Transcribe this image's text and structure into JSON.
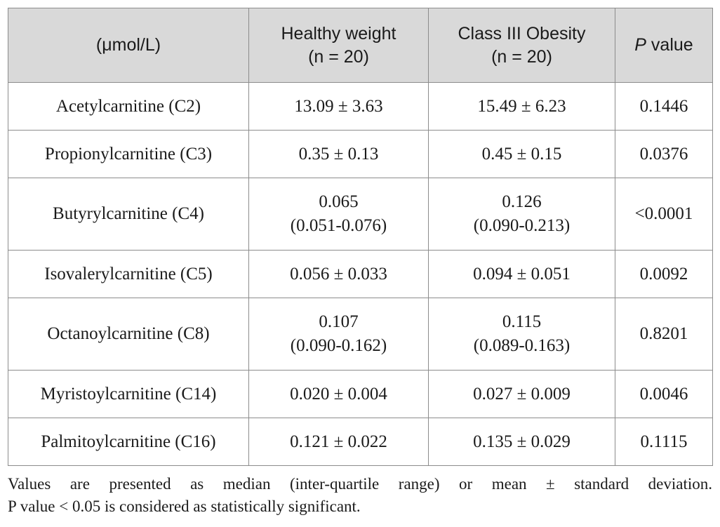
{
  "table": {
    "headers": [
      {
        "lines": [
          "(μmol/L)"
        ]
      },
      {
        "lines": [
          "Healthy weight",
          "(n = 20)"
        ]
      },
      {
        "lines": [
          "Class III Obesity",
          "(n = 20)"
        ]
      },
      {
        "italic": "P",
        "rest": " value"
      }
    ],
    "rows": [
      {
        "name": "Acetylcarnitine (C2)",
        "healthy": [
          "13.09 ± 3.63"
        ],
        "obesity": [
          "15.49 ± 6.23"
        ],
        "p": "0.1446"
      },
      {
        "name": "Propionylcarnitine (C3)",
        "healthy": [
          "0.35 ± 0.13"
        ],
        "obesity": [
          "0.45 ± 0.15"
        ],
        "p": "0.0376"
      },
      {
        "name": "Butyrylcarnitine (C4)",
        "healthy": [
          "0.065",
          "(0.051-0.076)"
        ],
        "obesity": [
          "0.126",
          "(0.090-0.213)"
        ],
        "p": "<0.0001"
      },
      {
        "name": "Isovalerylcarnitine (C5)",
        "healthy": [
          "0.056 ± 0.033"
        ],
        "obesity": [
          "0.094 ± 0.051"
        ],
        "p": "0.0092"
      },
      {
        "name": "Octanoylcarnitine (C8)",
        "healthy": [
          "0.107",
          "(0.090-0.162)"
        ],
        "obesity": [
          "0.115",
          "(0.089-0.163)"
        ],
        "p": "0.8201"
      },
      {
        "name": "Myristoylcarnitine (C14)",
        "healthy": [
          "0.020 ± 0.004"
        ],
        "obesity": [
          "0.027 ± 0.009"
        ],
        "p": "0.0046"
      },
      {
        "name": "Palmitoylcarnitine (C16)",
        "healthy": [
          "0.121 ± 0.022"
        ],
        "obesity": [
          "0.135 ± 0.029"
        ],
        "p": "0.1115"
      }
    ]
  },
  "footnote": {
    "line1": "Values are presented as median (inter-quartile range) or mean ± standard deviation.",
    "line2": "P value < 0.05 is considered as statistically significant."
  }
}
